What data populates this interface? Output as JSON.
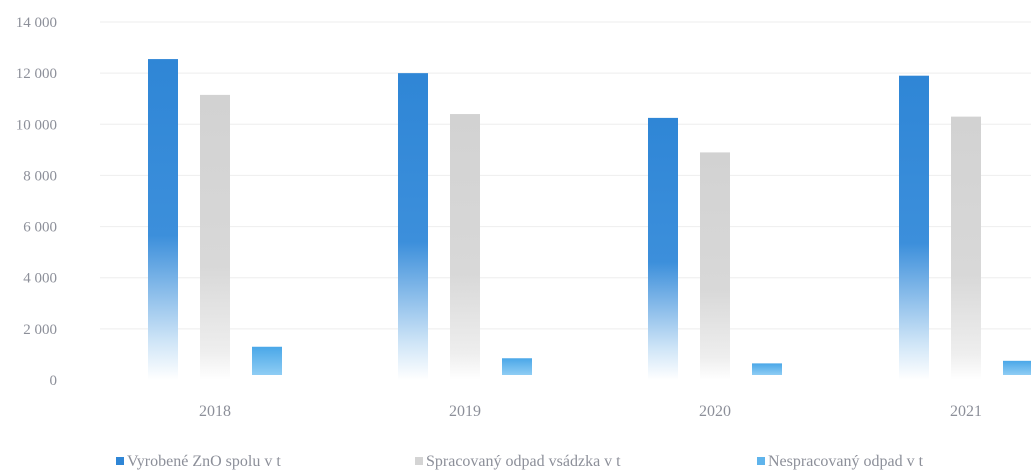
{
  "chart_data": {
    "type": "bar",
    "categories": [
      "2018",
      "2019",
      "2020",
      "2021"
    ],
    "series": [
      {
        "name": "Vyrobené ZnO spolu v t",
        "values": [
          12550,
          12000,
          10250,
          11900
        ]
      },
      {
        "name": "Spracovaný odpad vsádzka v t",
        "values": [
          11150,
          10400,
          8900,
          10300
        ]
      },
      {
        "name": "Nespracovaný odpad v t",
        "values": [
          1300,
          850,
          650,
          750
        ]
      }
    ],
    "y_ticks": [
      "0",
      "2 000",
      "4 000",
      "6 000",
      "8 000",
      "10 000",
      "12 000",
      "14 000"
    ],
    "ylim": [
      0,
      14000
    ],
    "grid": true,
    "legend_position": "bottom",
    "colors": {
      "series_0": "#2f86d6",
      "series_1": "#d4d4d4",
      "series_2": "#5fb4ec",
      "text": "#8c8f99",
      "grid": "#eeeeee"
    }
  }
}
